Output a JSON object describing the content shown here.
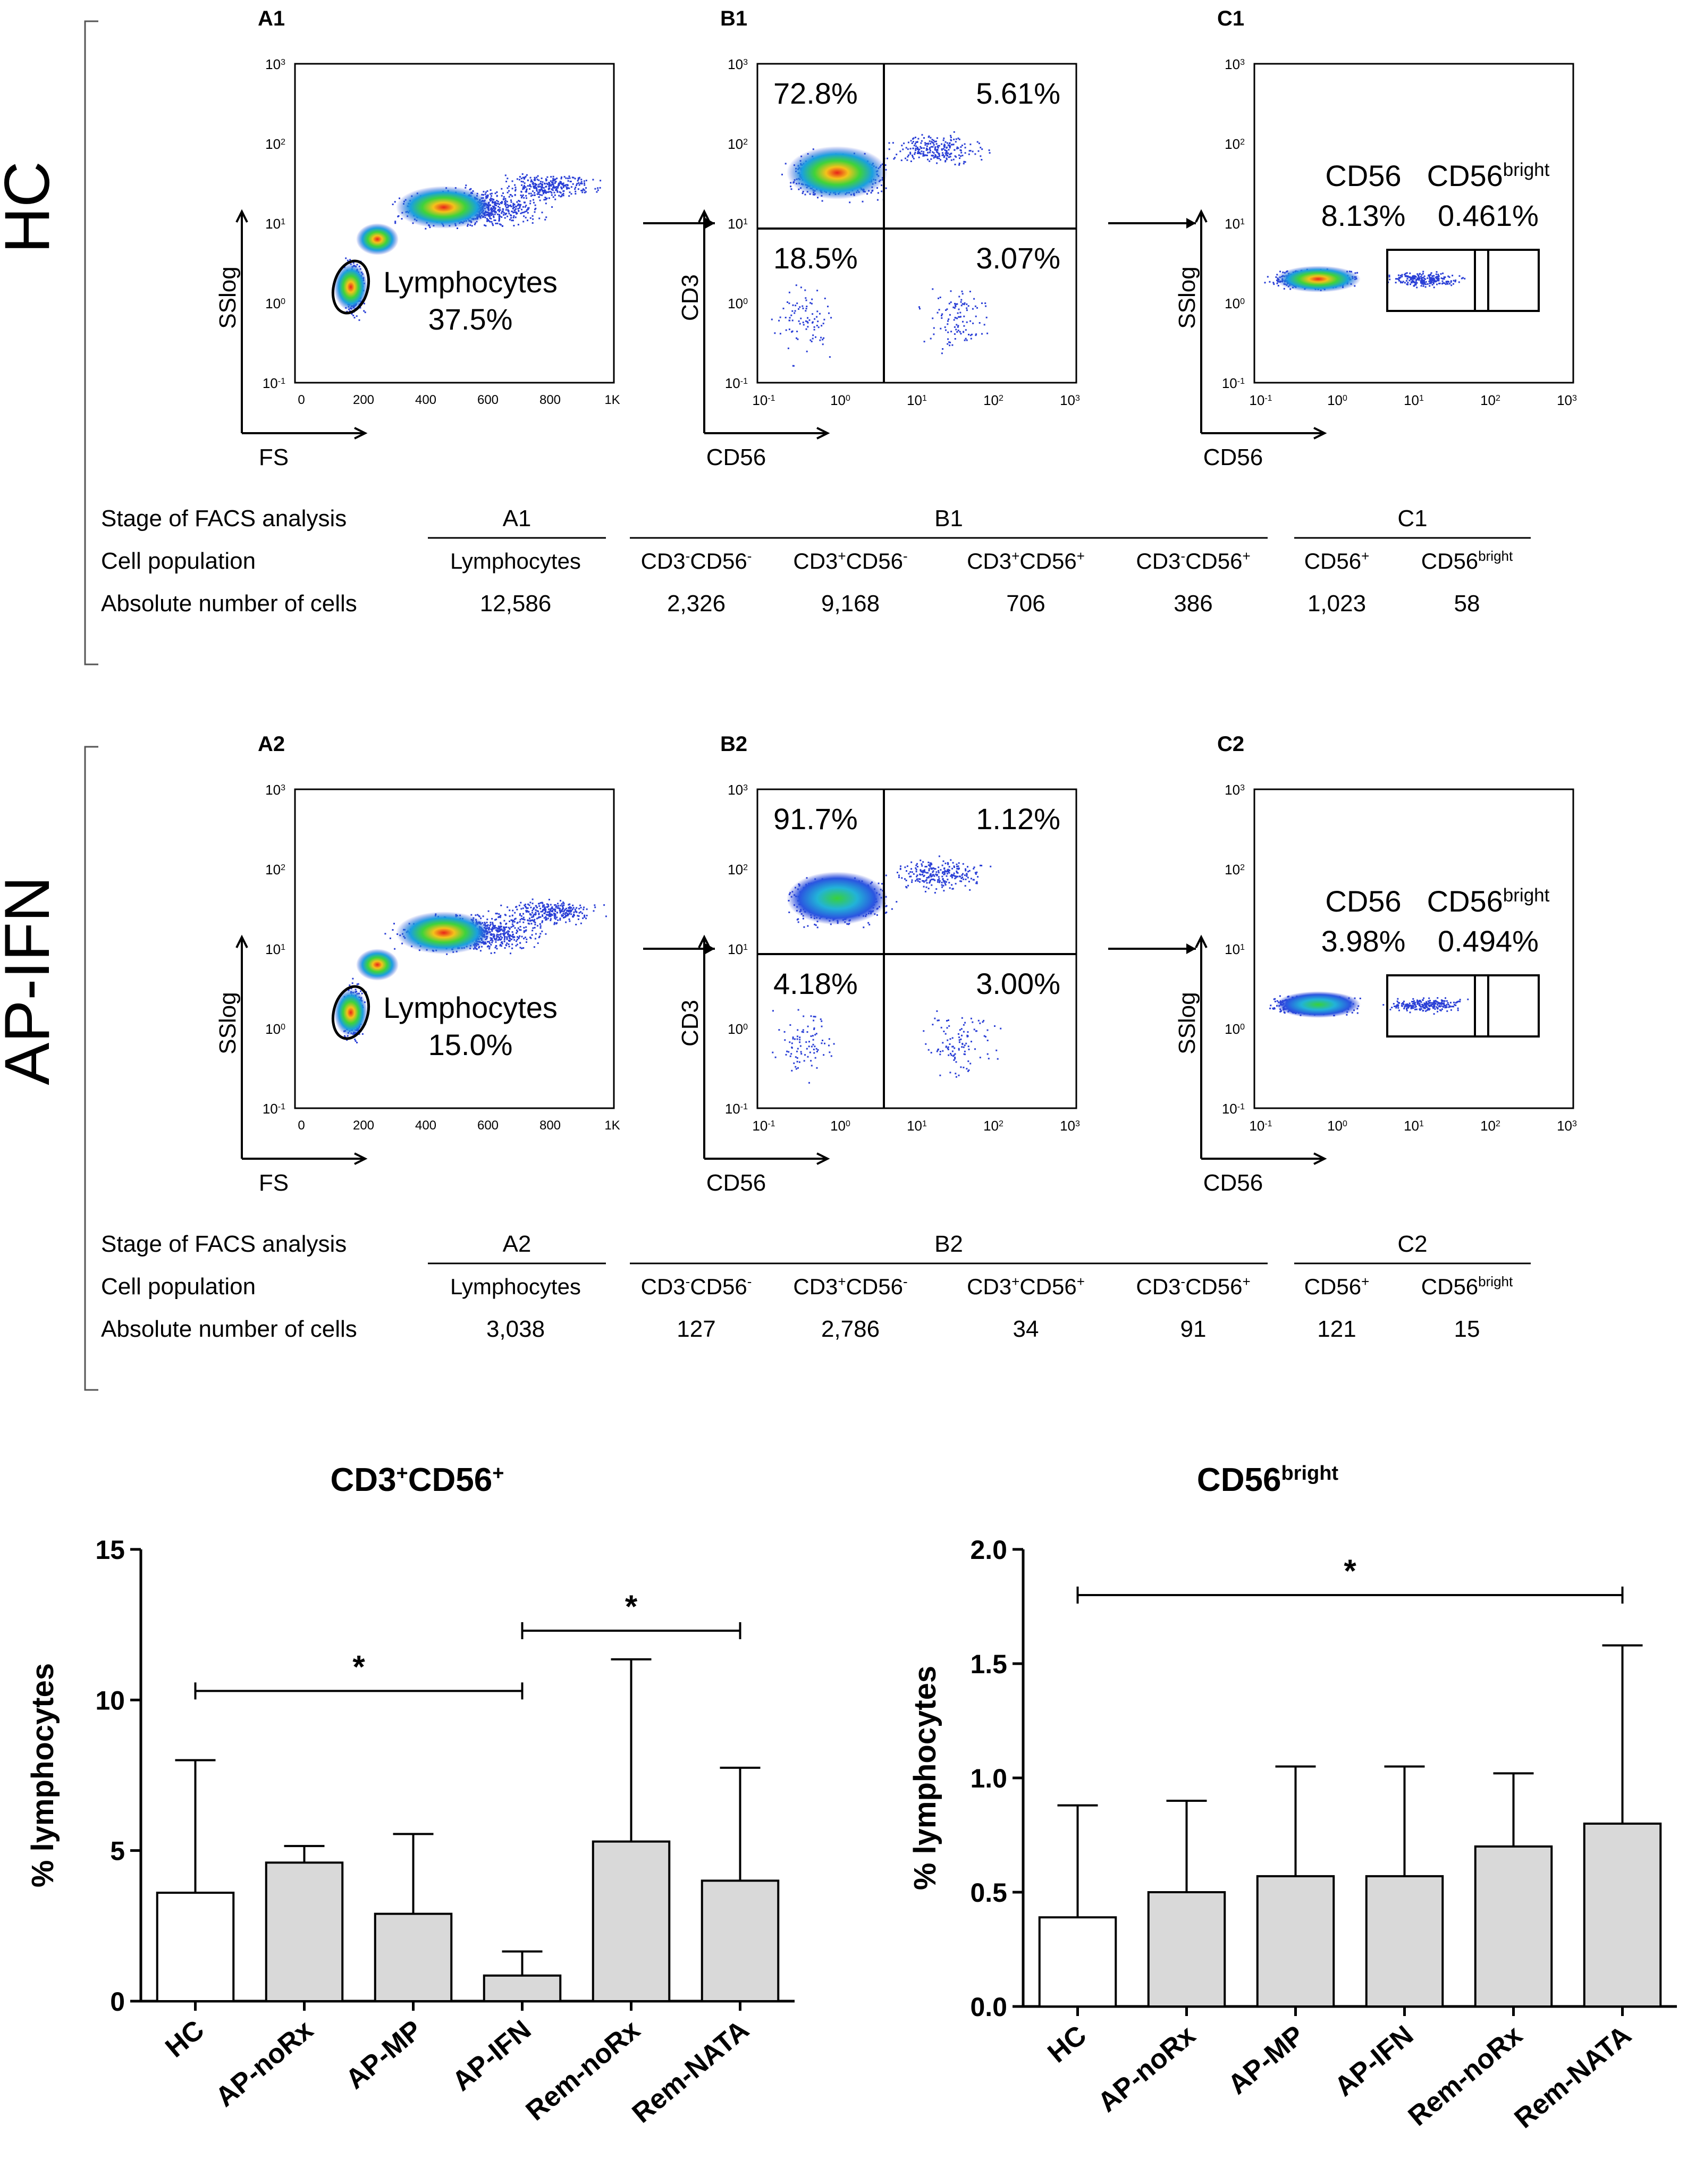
{
  "sections": [
    {
      "group": "HC",
      "panels": [
        {
          "id": "A1",
          "kind": "fs",
          "ylabel": "SSlog",
          "xlabel": "FS",
          "xticks": [
            "0",
            "200",
            "400",
            "600",
            "800",
            "1K"
          ],
          "gate_label": "Lymphocytes",
          "gate_value": "37.5%"
        },
        {
          "id": "B1",
          "kind": "quad",
          "ylabel": "CD3",
          "xlabel": "CD56",
          "q_ul": "72.8%",
          "q_ur": "5.61%",
          "q_ll": "18.5%",
          "q_lr": "3.07%"
        },
        {
          "id": "C1",
          "kind": "cd56",
          "ylabel": "SSlog",
          "xlabel": "CD56",
          "g1_label": "CD56",
          "g1_value": "8.13%",
          "g2_label": "CD56",
          "g2_sup": "bright",
          "g2_value": "0.461%"
        }
      ],
      "table": {
        "row_labels": [
          "Stage of FACS analysis",
          "Cell population",
          "Absolute number of cells"
        ],
        "stages": [
          "A1",
          "B1",
          "C1"
        ],
        "populations": [
          [
            "Lymphocytes",
            ""
          ],
          [
            "CD3",
            "-",
            "CD56",
            "-"
          ],
          [
            "CD3",
            "+",
            "CD56",
            "-"
          ],
          [
            "CD3",
            "+",
            "CD56",
            "+"
          ],
          [
            "CD3",
            "-",
            "CD56",
            "+"
          ],
          [
            "CD56",
            "+"
          ],
          [
            "CD56",
            "bright"
          ]
        ],
        "counts": [
          "12,586",
          "2,326",
          "9,168",
          "706",
          "386",
          "1,023",
          "58"
        ]
      }
    },
    {
      "group": "AP-IFN",
      "panels": [
        {
          "id": "A2",
          "kind": "fs",
          "ylabel": "SSlog",
          "xlabel": "FS",
          "xticks": [
            "0",
            "200",
            "400",
            "600",
            "800",
            "1K"
          ],
          "gate_label": "Lymphocytes",
          "gate_value": "15.0%"
        },
        {
          "id": "B2",
          "kind": "quad",
          "ylabel": "CD3",
          "xlabel": "CD56",
          "q_ul": "91.7%",
          "q_ur": "1.12%",
          "q_ll": "4.18%",
          "q_lr": "3.00%"
        },
        {
          "id": "C2",
          "kind": "cd56",
          "ylabel": "SSlog",
          "xlabel": "CD56",
          "g1_label": "CD56",
          "g1_value": "3.98%",
          "g2_label": "CD56",
          "g2_sup": "bright",
          "g2_value": "0.494%"
        }
      ],
      "table": {
        "row_labels": [
          "Stage of FACS analysis",
          "Cell population",
          "Absolute number of cells"
        ],
        "stages": [
          "A2",
          "B2",
          "C2"
        ],
        "populations": [
          [
            "Lymphocytes",
            ""
          ],
          [
            "CD3",
            "-",
            "CD56",
            "-"
          ],
          [
            "CD3",
            "+",
            "CD56",
            "-"
          ],
          [
            "CD3",
            "+",
            "CD56",
            "+"
          ],
          [
            "CD3",
            "-",
            "CD56",
            "+"
          ],
          [
            "CD56",
            "+"
          ],
          [
            "CD56",
            "bright"
          ]
        ],
        "counts": [
          "3,038",
          "127",
          "2,786",
          "34",
          "91",
          "121",
          "15"
        ]
      }
    }
  ],
  "colors": {
    "bar_hc": "#ffffff",
    "bar_other": "#d9d9d9",
    "axis": "#000000"
  },
  "chart_data": [
    {
      "type": "bar",
      "title": "CD3+CD56+",
      "title_parts": [
        "CD3",
        "+",
        "CD56",
        "+"
      ],
      "ylabel": "% lymphocytes",
      "xlabel": "",
      "categories": [
        "HC",
        "AP-noRx",
        "AP-MP",
        "AP-IFN",
        "Rem-noRx",
        "Rem-NATA"
      ],
      "values": [
        3.6,
        4.6,
        2.9,
        0.85,
        5.3,
        4.0
      ],
      "error_upper": [
        8.0,
        5.15,
        5.55,
        1.65,
        11.35,
        7.75
      ],
      "ylim": [
        0,
        15
      ],
      "yticks": [
        0,
        5,
        10,
        15
      ],
      "significance": [
        {
          "from": "HC",
          "to": "AP-IFN",
          "y": 10.3,
          "label": "*"
        },
        {
          "from": "AP-IFN",
          "to": "Rem-NATA",
          "y": 12.3,
          "label": "*"
        }
      ]
    },
    {
      "type": "bar",
      "title": "CD56bright",
      "title_parts": [
        "CD56",
        "bright"
      ],
      "ylabel": "% lymphocytes",
      "xlabel": "",
      "categories": [
        "HC",
        "AP-noRx",
        "AP-MP",
        "AP-IFN",
        "Rem-noRx",
        "Rem-NATA"
      ],
      "values": [
        0.39,
        0.5,
        0.57,
        0.57,
        0.7,
        0.8
      ],
      "error_upper": [
        0.88,
        0.9,
        1.05,
        1.05,
        1.02,
        1.58
      ],
      "ylim": [
        0,
        2.0
      ],
      "yticks": [
        0.0,
        0.5,
        1.0,
        1.5,
        2.0
      ],
      "significance": [
        {
          "from": "HC",
          "to": "Rem-NATA",
          "y": 1.8,
          "label": "*"
        }
      ]
    }
  ]
}
